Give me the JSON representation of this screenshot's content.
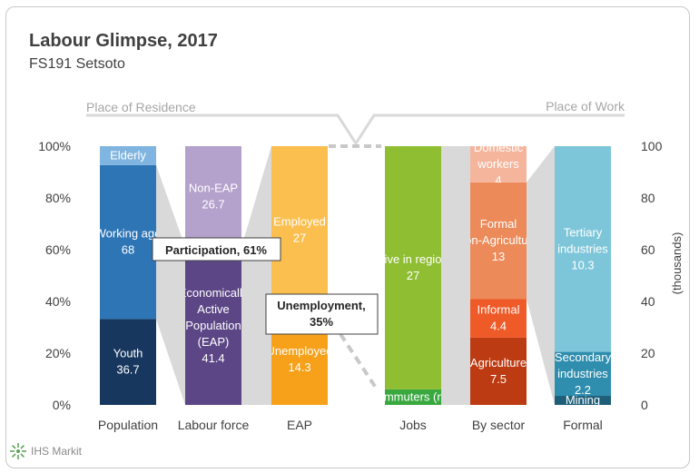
{
  "header": {
    "title": "Labour Glimpse, 2017",
    "subtitle": "FS191 Setsoto"
  },
  "logo": {
    "text": "IHS Markit"
  },
  "chart_data": {
    "type": "bar",
    "title": "Labour Glimpse, 2017",
    "subtitle": "FS191 Setsoto",
    "left_axis": {
      "ticks": [
        "0%",
        "20%",
        "40%",
        "60%",
        "80%",
        "100%"
      ],
      "range": [
        0,
        100
      ]
    },
    "right_axis": {
      "label": "(thousands)",
      "ticks": [
        "0",
        "20",
        "40",
        "60",
        "80",
        "100"
      ],
      "range": [
        0,
        100
      ]
    },
    "categories": [
      "Population",
      "Labour force",
      "EAP",
      "Jobs",
      "By sector",
      "Formal"
    ],
    "section_labels": {
      "left": "Place of Residence",
      "right": "Place of Work"
    },
    "bars": [
      {
        "category": "Population",
        "segments": [
          {
            "label": "Youth",
            "value": 36.7,
            "share": 33.2,
            "color": "#17375e"
          },
          {
            "label": "Working age",
            "value": 68,
            "share": 59.5,
            "color": "#2e75b6"
          },
          {
            "label": "Elderly",
            "value": null,
            "share": 7.3,
            "color": "#7fb5e0"
          }
        ]
      },
      {
        "category": "Labour force",
        "segments": [
          {
            "label": "Economically Active Population (EAP)",
            "value": 41.4,
            "share": 61,
            "color": "#5c4686"
          },
          {
            "label": "Non-EAP",
            "value": 26.7,
            "share": 39,
            "color": "#b4a1cc"
          }
        ]
      },
      {
        "category": "EAP",
        "segments": [
          {
            "label": "Unemployed",
            "value": 14.3,
            "share": 35,
            "color": "#f7a11a"
          },
          {
            "label": "Employed",
            "value": 27,
            "share": 65,
            "color": "#fbbf4f"
          }
        ]
      },
      {
        "category": "Jobs",
        "segments": [
          {
            "label": "Commuters (net)",
            "value": null,
            "share": 6,
            "color": "#39a83f"
          },
          {
            "label": "Live in region",
            "value": 27,
            "share": 94,
            "color": "#8fbe33"
          }
        ]
      },
      {
        "category": "By sector",
        "segments": [
          {
            "label": "Agriculture",
            "value": 7.5,
            "share": 26,
            "color": "#bd3b13"
          },
          {
            "label": "Informal",
            "value": 4.4,
            "share": 15,
            "color": "#ee5a28"
          },
          {
            "label": "Formal (non-Agriculture)",
            "value": 13,
            "share": 45,
            "color": "#ec8a59"
          },
          {
            "label": "Domestic workers",
            "value": 4,
            "share": 14,
            "color": "#f5b59c"
          }
        ]
      },
      {
        "category": "Formal",
        "segments": [
          {
            "label": "Mining",
            "value": null,
            "share": 3.5,
            "color": "#1d5e78"
          },
          {
            "label": "Secondary industries",
            "value": 2.2,
            "share": 17,
            "color": "#2f8eae"
          },
          {
            "label": "Tertiary industries",
            "value": 10.3,
            "share": 79.5,
            "color": "#7dc6d9"
          }
        ]
      }
    ],
    "callouts": [
      {
        "label": "Participation, 61%"
      },
      {
        "label": "Unemployment, 35%"
      }
    ],
    "colors": {
      "connector": "#d9d9d9",
      "axis_text": "#404040"
    }
  }
}
